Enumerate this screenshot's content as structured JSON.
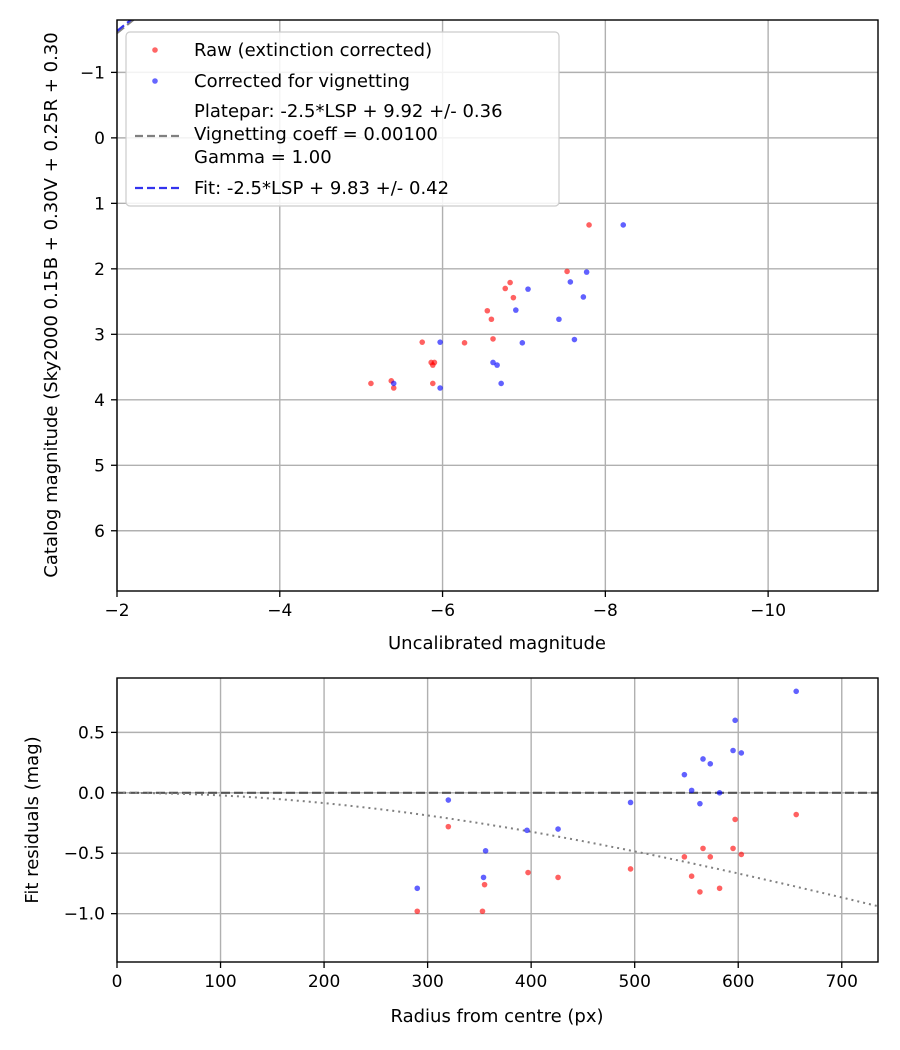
{
  "chart_data": [
    {
      "type": "scatter",
      "xlabel": "Uncalibrated magnitude",
      "ylabel": "Catalog magnitude (Sky2000 0.15B + 0.30V + 0.25R + 0.30",
      "xlim": [
        -2.0,
        -11.35
      ],
      "ylim": [
        6.92,
        -1.8
      ],
      "x_inverted": true,
      "y_inverted": true,
      "grid": true,
      "legend_position": "upper-left",
      "x_ticks": [
        -2,
        -4,
        -6,
        -8,
        -10
      ],
      "x_tick_labels": [
        "−2",
        "−4",
        "−6",
        "−8",
        "−10"
      ],
      "y_ticks": [
        -1,
        0,
        1,
        2,
        3,
        4,
        5,
        6
      ],
      "y_tick_labels": [
        "−1",
        "0",
        "1",
        "2",
        "3",
        "4",
        "5",
        "6"
      ],
      "series": [
        {
          "name": "Raw (extinction corrected)",
          "kind": "scatter",
          "color": "#ff0000",
          "x": [
            -7.8,
            -7.53,
            -6.83,
            -6.87,
            -6.77,
            -6.55,
            -6.6,
            -6.62,
            -6.27,
            -5.75,
            -5.86,
            -5.9,
            -5.88,
            -5.12,
            -5.37,
            -5.4,
            -5.88
          ],
          "y": [
            1.33,
            2.04,
            2.21,
            2.44,
            2.3,
            2.64,
            2.77,
            3.07,
            3.13,
            3.12,
            3.43,
            3.43,
            3.47,
            3.75,
            3.71,
            3.82,
            3.75
          ]
        },
        {
          "name": "Corrected for vignetting",
          "kind": "scatter",
          "color": "#0000ff",
          "x": [
            -8.22,
            -7.77,
            -7.57,
            -7.73,
            -7.05,
            -6.9,
            -7.43,
            -7.62,
            -6.98,
            -5.97,
            -6.62,
            -6.67,
            -6.72,
            -5.4,
            -5.97
          ],
          "y": [
            1.33,
            2.05,
            2.2,
            2.43,
            2.31,
            2.63,
            2.77,
            3.08,
            3.13,
            3.12,
            3.43,
            3.47,
            3.75,
            3.75,
            3.82
          ]
        },
        {
          "name": "Platepar: -2.5*LSP + 9.92 +/- 0.36",
          "name_line2": "Vignetting coeff = 0.00100",
          "name_line3": "Gamma = 1.00",
          "kind": "line",
          "style": "dashed",
          "color": "#808080",
          "slope": -2.5,
          "intercept": 9.92
        },
        {
          "name": "Fit: -2.5*LSP + 9.83 +/- 0.42",
          "kind": "line",
          "style": "dashed",
          "color": "#3333ee",
          "slope": -2.5,
          "intercept": 9.83
        }
      ]
    },
    {
      "type": "scatter",
      "xlabel": "Radius from centre (px)",
      "ylabel": "Fit residuals (mag)",
      "xlim": [
        0,
        735
      ],
      "ylim": [
        -1.4,
        0.95
      ],
      "grid": true,
      "x_ticks": [
        0,
        100,
        200,
        300,
        400,
        500,
        600,
        700
      ],
      "x_tick_labels": [
        "0",
        "100",
        "200",
        "300",
        "400",
        "500",
        "600",
        "700"
      ],
      "y_ticks": [
        0.5,
        0.0,
        -0.5,
        -1.0
      ],
      "y_tick_labels": [
        "0.5",
        "0.0",
        "−0.5",
        "−1.0"
      ],
      "series": [
        {
          "kind": "scatter",
          "color": "#ff0000",
          "x": [
            290,
            320,
            353,
            355,
            397,
            426,
            496,
            548,
            555,
            563,
            566,
            573,
            582,
            595,
            597,
            603,
            656
          ],
          "y": [
            -0.98,
            -0.28,
            -0.98,
            -0.76,
            -0.66,
            -0.7,
            -0.63,
            -0.53,
            -0.69,
            -0.82,
            -0.46,
            -0.53,
            -0.79,
            -0.46,
            -0.22,
            -0.51,
            -0.18
          ]
        },
        {
          "kind": "scatter",
          "color": "#0000ff",
          "x": [
            290,
            320,
            354,
            356,
            396,
            426,
            496,
            548,
            555,
            563,
            566,
            573,
            582,
            595,
            597,
            603,
            656
          ],
          "y": [
            -0.79,
            -0.06,
            -0.7,
            -0.48,
            -0.31,
            -0.3,
            -0.08,
            0.15,
            0.02,
            -0.09,
            0.28,
            0.24,
            0.0,
            0.35,
            0.6,
            0.33,
            0.84
          ]
        },
        {
          "kind": "line",
          "style": "dashed",
          "color": "#555555",
          "x": [
            0,
            735
          ],
          "y": [
            0,
            0
          ]
        },
        {
          "kind": "curve",
          "style": "dotted",
          "color": "#808080",
          "vignetting_coeff": 0.001,
          "x_range": [
            0,
            735
          ]
        }
      ]
    }
  ]
}
